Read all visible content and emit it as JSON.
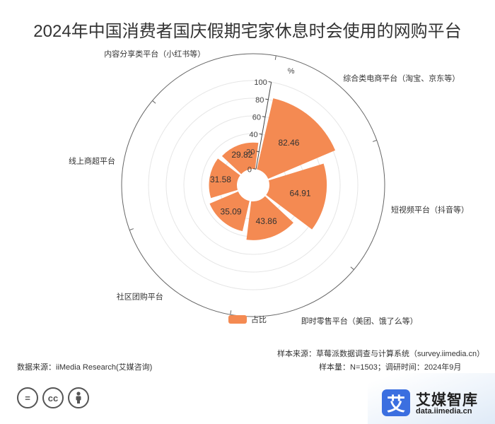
{
  "title": "2024年中国消费者国庆假期宅家休息时会使用的网购平台",
  "chart_data": {
    "type": "polar-bar",
    "unit": "%",
    "rlim": [
      0,
      100
    ],
    "radial_ticks": [
      0,
      20,
      40,
      60,
      80,
      100
    ],
    "categories": [
      "综合类电商平台（淘宝、京东等）",
      "短视频平台（抖音等）",
      "即时零售平台（美团、饿了么等）",
      "社区团购平台",
      "线上商超平台",
      "内容分享类平台（小红书等）"
    ],
    "series": [
      {
        "name": "占比",
        "values": [
          82.46,
          64.91,
          43.86,
          35.09,
          31.58,
          29.82
        ],
        "color": "#f48a52"
      }
    ],
    "data_labels": [
      "82.46",
      "64.91",
      "43.86",
      "35.09",
      "31.58",
      "29.82"
    ],
    "angle_labels": [
      "综合类电商平台（淘宝、京东等）",
      "短视频平台（抖音等）",
      "即时零售平台（美团、饿了么等）",
      "社区团购平台",
      "线上商超平台",
      "内容分享类平台（小红书等）"
    ]
  },
  "legend": {
    "label": "占比",
    "color": "#f48a52"
  },
  "footer": {
    "source_left": "数据来源：iiMedia Research(艾媒咨询)",
    "sample_source": "样本来源：草莓派数据调查与计算系统（survey.iimedia.cn）",
    "sample_size": "样本量：N=1503；调研时间：2024年9月"
  },
  "license_icons": [
    "=",
    "cc",
    "person-icon"
  ],
  "brand": {
    "mark": "艾",
    "name": "艾媒智库",
    "url": "data.iimedia.cn",
    "color": "#3b6fe0"
  }
}
